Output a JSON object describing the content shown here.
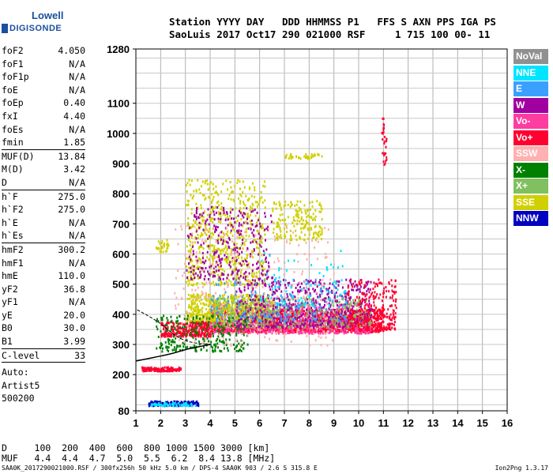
{
  "logo": {
    "line1": "Lowell",
    "line2": "DIGISONDE"
  },
  "header": {
    "line1": "Station YYYY DAY   DDD HHMMSS P1   FFS S AXN PPS IGA PS",
    "line2": "SaoLuis 2017 Oct17 290 021000 RSF     1 715 100 00- 11"
  },
  "params": [
    {
      "k": "foF2",
      "v": "4.050"
    },
    {
      "k": "foF1",
      "v": "N/A"
    },
    {
      "k": "foF1p",
      "v": "N/A"
    },
    {
      "k": "foE",
      "v": "N/A"
    },
    {
      "k": "foEp",
      "v": "0.40"
    },
    {
      "k": "fxI",
      "v": "4.40"
    },
    {
      "k": "foEs",
      "v": "N/A"
    },
    {
      "k": "fmin",
      "v": "1.85"
    },
    {
      "k": "MUF(D)",
      "v": "13.84",
      "sep": true
    },
    {
      "k": "M(D)",
      "v": "3.42"
    },
    {
      "k": "D",
      "v": "N/A"
    },
    {
      "k": "h`F",
      "v": "275.0",
      "sep": true
    },
    {
      "k": "h`F2",
      "v": "275.0"
    },
    {
      "k": "h`E",
      "v": "N/A"
    },
    {
      "k": "h`Es",
      "v": "N/A"
    },
    {
      "k": "hmF2",
      "v": "300.2",
      "sep": true
    },
    {
      "k": "hmF1",
      "v": "N/A"
    },
    {
      "k": "hmE",
      "v": "110.0"
    },
    {
      "k": "yF2",
      "v": "36.8"
    },
    {
      "k": "yF1",
      "v": "N/A"
    },
    {
      "k": "yE",
      "v": "20.0"
    },
    {
      "k": "B0",
      "v": "30.0"
    },
    {
      "k": "B1",
      "v": "3.99"
    },
    {
      "k": "C-level",
      "v": "33",
      "sep": true
    }
  ],
  "params_text": [
    "Auto:",
    "Artist5",
    "500200"
  ],
  "legend": [
    {
      "name": "NoVal",
      "color": "#909090"
    },
    {
      "name": "NNE",
      "color": "#00e5ff"
    },
    {
      "name": "E",
      "color": "#3aa0ff"
    },
    {
      "name": "W",
      "color": "#a000a0"
    },
    {
      "name": "Vo-",
      "color": "#ff3ca0"
    },
    {
      "name": "Vo+",
      "color": "#ff0030"
    },
    {
      "name": "SSW",
      "color": "#ffb0b0"
    },
    {
      "name": "X-",
      "color": "#008000"
    },
    {
      "name": "X+",
      "color": "#80c060"
    },
    {
      "name": "SSE",
      "color": "#d0d000"
    },
    {
      "name": "NNW",
      "color": "#0000c0"
    }
  ],
  "muf_table": {
    "row1": "D     100  200  400  600  800 1000 1500 3000 [km]",
    "row2": "MUF   4.4  4.4  4.7  5.0  5.5  6.2  8.4 13.8 [MHz]"
  },
  "footer": {
    "left": "SAA0K_2017290021000.RSF / 300fx256h 50 kHz 5.0 km / DPS-4 SAA0K 903 / 2.6 S 315.8 E",
    "right": "Ion2Png 1.3.17"
  },
  "chart_data": {
    "type": "scatter",
    "title": "",
    "xlabel": "",
    "ylabel": "",
    "xlim": [
      1,
      16
    ],
    "ylim": [
      80,
      1280
    ],
    "x_ticks": [
      1,
      2,
      3,
      4,
      5,
      6,
      7,
      8,
      9,
      10,
      11,
      12,
      13,
      14,
      15,
      16
    ],
    "y_ticks": [
      80,
      200,
      300,
      400,
      500,
      600,
      700,
      800,
      900,
      1000,
      1100,
      1280
    ],
    "grid": true,
    "profile_curve": {
      "name": "",
      "x": [
        1.0,
        1.3,
        1.6,
        1.9,
        2.2,
        2.5,
        2.8,
        3.1,
        3.4,
        3.7,
        4.0,
        4.05
      ],
      "y": [
        245,
        250,
        255,
        260,
        265,
        271,
        278,
        285,
        290,
        295,
        300,
        300
      ]
    },
    "trace_curve": {
      "x": [
        1.05,
        1.5,
        1.9,
        2.2,
        2.5,
        2.8,
        3.1,
        3.4,
        3.7,
        4.05
      ],
      "y": [
        415,
        395,
        375,
        355,
        335,
        320,
        310,
        305,
        302,
        300
      ]
    },
    "point_clusters": [
      {
        "series": "Vo+",
        "x": [
          2.0,
          4.0
        ],
        "y": [
          330,
          380
        ],
        "n": 320
      },
      {
        "series": "Vo+",
        "x": [
          4.0,
          11.0
        ],
        "y": [
          345,
          420
        ],
        "n": 1400
      },
      {
        "series": "Vo-",
        "x": [
          4.0,
          10.5
        ],
        "y": [
          340,
          440
        ],
        "n": 700
      },
      {
        "series": "SSE",
        "x": [
          3.0,
          6.5
        ],
        "y": [
          380,
          470
        ],
        "n": 600
      },
      {
        "series": "SSE",
        "x": [
          3.0,
          6.2
        ],
        "y": [
          500,
          850
        ],
        "n": 600
      },
      {
        "series": "SSE",
        "x": [
          6.5,
          8.5
        ],
        "y": [
          650,
          780
        ],
        "n": 180
      },
      {
        "series": "SSE",
        "x": [
          7.0,
          8.5
        ],
        "y": [
          920,
          935
        ],
        "n": 40
      },
      {
        "series": "X+",
        "x": [
          4.0,
          10.5
        ],
        "y": [
          360,
          460
        ],
        "n": 500
      },
      {
        "series": "X-",
        "x": [
          1.8,
          5.5
        ],
        "y": [
          280,
          400
        ],
        "n": 260
      },
      {
        "series": "W",
        "x": [
          5.0,
          10.5
        ],
        "y": [
          360,
          520
        ],
        "n": 500
      },
      {
        "series": "W",
        "x": [
          3.0,
          6.5
        ],
        "y": [
          520,
          760
        ],
        "n": 300
      },
      {
        "series": "E",
        "x": [
          4.0,
          9.5
        ],
        "y": [
          380,
          520
        ],
        "n": 200
      },
      {
        "series": "NNE",
        "x": [
          6.0,
          9.5
        ],
        "y": [
          430,
          620
        ],
        "n": 80
      },
      {
        "series": "SSW",
        "x": [
          2.5,
          9.0
        ],
        "y": [
          300,
          700
        ],
        "n": 250
      },
      {
        "series": "NNW",
        "x": [
          1.5,
          3.5
        ],
        "y": [
          100,
          115
        ],
        "n": 150
      },
      {
        "series": "NNE",
        "x": [
          1.6,
          3.5
        ],
        "y": [
          100,
          110
        ],
        "n": 60
      },
      {
        "series": "Vo+",
        "x": [
          1.2,
          2.8
        ],
        "y": [
          215,
          228
        ],
        "n": 120
      },
      {
        "series": "SSE",
        "x": [
          1.8,
          2.3
        ],
        "y": [
          610,
          650
        ],
        "n": 30
      },
      {
        "series": "Vo+",
        "x": [
          10.9,
          11.1
        ],
        "y": [
          900,
          1060
        ],
        "n": 30
      },
      {
        "series": "Vo+",
        "x": [
          9.5,
          11.5
        ],
        "y": [
          350,
          520
        ],
        "n": 260
      }
    ]
  }
}
